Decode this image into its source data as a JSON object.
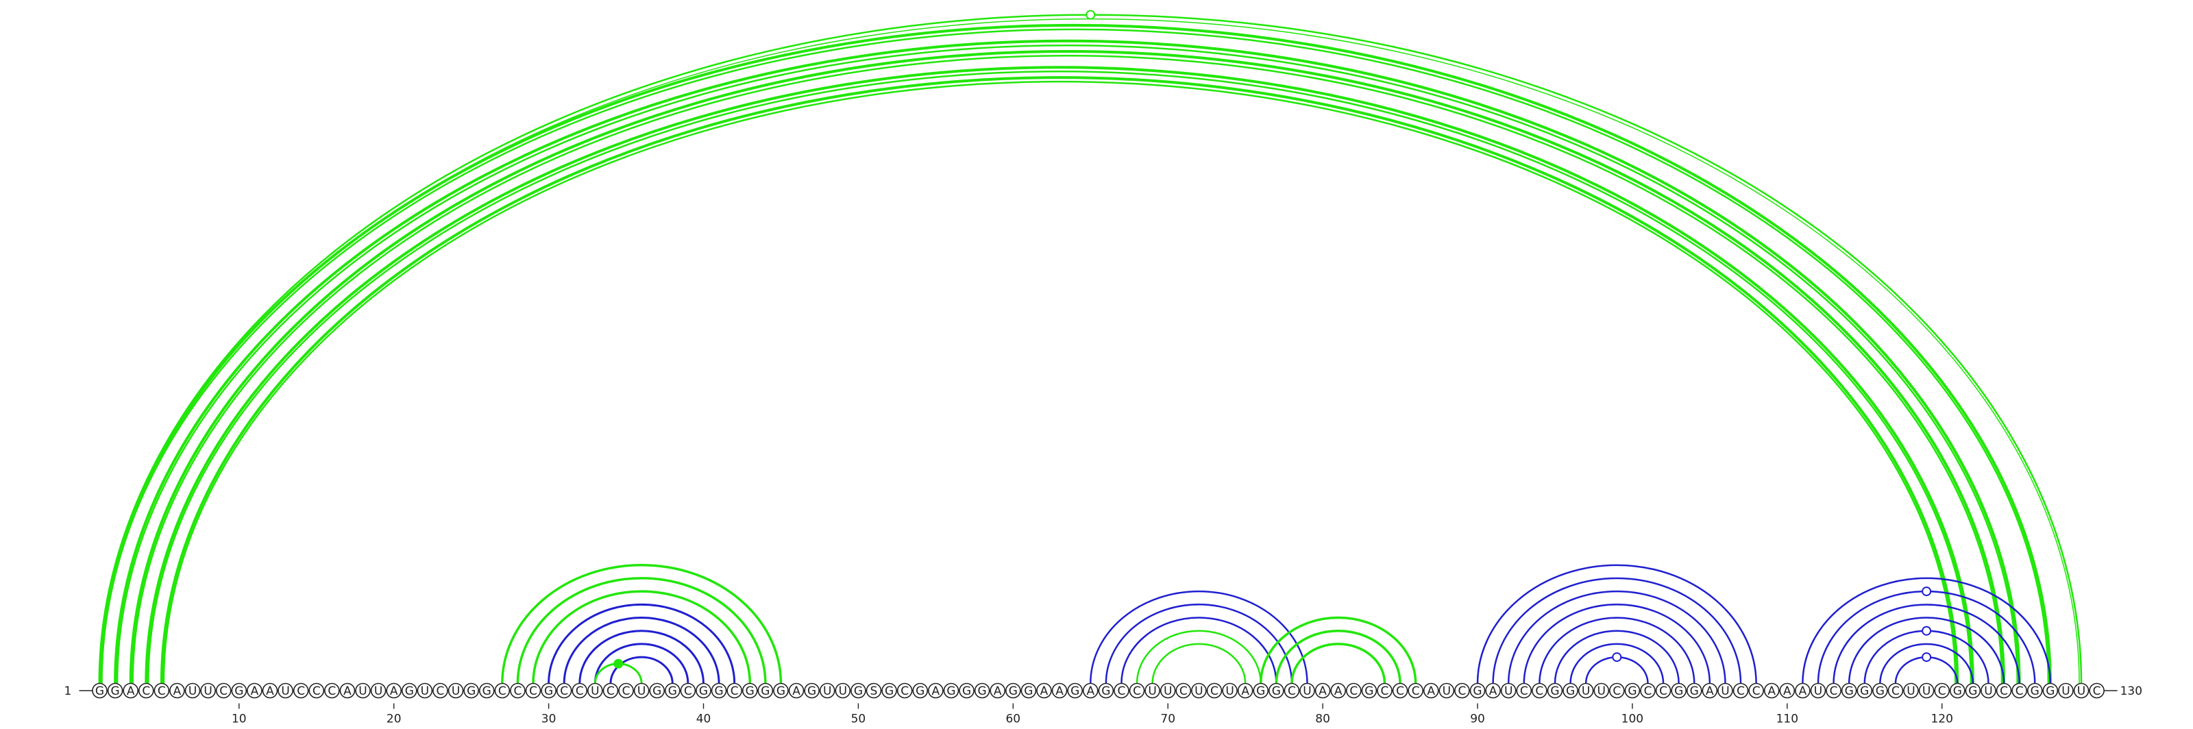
{
  "sequence": "GGACCAUUCGAAUCCCAUUAGUCUGGCCCGCCUCCUGGCGGCGGGAGUUGSGCGAGGGAGGAAGAGCCUUCUCUAGGCUAACGCCCAUCGAUCCGGUUCGCCGGAUCCAAAUCGGGCUUCGGUCCGGUUC",
  "start_label": "1",
  "end_label": "130",
  "ticks": [
    10,
    20,
    30,
    40,
    50,
    60,
    70,
    80,
    90,
    100,
    110,
    120
  ],
  "colors": {
    "green": "#22e60a",
    "blue": "#1f1fd0",
    "text": "#222222"
  },
  "arc_groups": [
    {
      "name": "long-range-green",
      "color": "green",
      "pairs": [
        [
          1,
          127
        ],
        [
          2,
          125
        ],
        [
          3,
          124
        ],
        [
          4,
          122
        ],
        [
          5,
          121
        ]
      ],
      "width": 4
    },
    {
      "name": "outer-single-green",
      "color": "green",
      "pairs": [
        [
          1,
          129
        ]
      ],
      "width": 2.5
    },
    {
      "name": "hairpin-a-green",
      "color": "green",
      "pairs": [
        [
          27,
          45
        ],
        [
          28,
          44
        ],
        [
          29,
          43
        ]
      ],
      "width": 3.5
    },
    {
      "name": "hairpin-a-blue",
      "color": "blue",
      "pairs": [
        [
          30,
          42
        ],
        [
          31,
          41
        ],
        [
          32,
          40
        ],
        [
          33,
          39
        ],
        [
          34,
          38
        ]
      ],
      "width": 3
    },
    {
      "name": "hairpin-a-core",
      "color": "green",
      "pairs": [
        [
          33,
          36
        ]
      ],
      "width": 3
    },
    {
      "name": "hairpin-b-blue",
      "color": "blue",
      "pairs": [
        [
          65,
          79
        ],
        [
          66,
          78
        ],
        [
          67,
          77
        ]
      ],
      "width": 2.5
    },
    {
      "name": "hairpin-b-green",
      "color": "green",
      "pairs": [
        [
          68,
          76
        ],
        [
          69,
          75
        ]
      ],
      "width": 2.5
    },
    {
      "name": "hairpin-c-green",
      "color": "green",
      "pairs": [
        [
          76,
          86
        ],
        [
          77,
          85
        ],
        [
          78,
          84
        ]
      ],
      "width": 3.5
    },
    {
      "name": "hairpin-d-blue",
      "color": "blue",
      "pairs": [
        [
          90,
          108
        ],
        [
          91,
          107
        ],
        [
          92,
          106
        ],
        [
          93,
          105
        ],
        [
          94,
          104
        ],
        [
          95,
          103
        ],
        [
          96,
          102
        ],
        [
          97,
          101
        ]
      ],
      "width": 2.5
    },
    {
      "name": "hairpin-e-blue",
      "color": "blue",
      "pairs": [
        [
          111,
          127
        ],
        [
          112,
          126
        ],
        [
          113,
          125
        ],
        [
          114,
          124
        ],
        [
          115,
          123
        ],
        [
          116,
          122
        ],
        [
          117,
          121
        ]
      ],
      "width": 2.5
    }
  ],
  "markers": [
    {
      "pos": [
        1,
        129
      ],
      "color": "green",
      "filled": false
    },
    {
      "pos": [
        33,
        36
      ],
      "color": "green",
      "filled": true
    },
    {
      "pos": [
        97,
        101
      ],
      "color": "blue",
      "filled": false
    },
    {
      "pos": [
        117,
        121
      ],
      "color": "blue",
      "filled": false
    },
    {
      "pos": [
        115,
        123
      ],
      "color": "blue",
      "filled": false
    },
    {
      "pos": [
        112,
        126
      ],
      "color": "blue",
      "filled": false
    }
  ]
}
